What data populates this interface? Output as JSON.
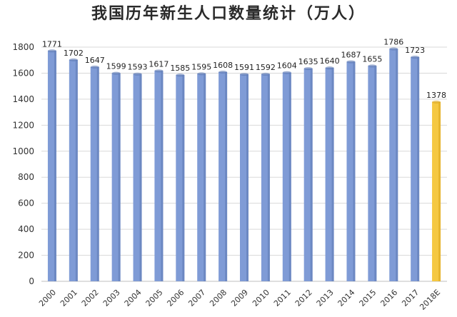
{
  "chart_data": {
    "type": "bar",
    "title": "我国历年新生人口数量统计（万人）",
    "categories": [
      "2000",
      "2001",
      "2002",
      "2003",
      "2004",
      "2005",
      "2006",
      "2007",
      "2008",
      "2009",
      "2010",
      "2011",
      "2012",
      "2013",
      "2014",
      "2015",
      "2016",
      "2017",
      "2018E"
    ],
    "values": [
      1771,
      1702,
      1647,
      1599,
      1593,
      1617,
      1585,
      1595,
      1608,
      1591,
      1592,
      1604,
      1635,
      1640,
      1687,
      1655,
      1786,
      1723,
      1378
    ],
    "ylim": [
      0,
      1800
    ],
    "yticks": [
      0,
      200,
      400,
      600,
      800,
      1000,
      1200,
      1400,
      1600,
      1800
    ],
    "grid": true,
    "legend": "none",
    "colors": {
      "bar": "#7f9bd6",
      "bar_dark": "#5c78b3",
      "highlight": "#f5c842",
      "highlight_dark": "#d9a520"
    },
    "highlight_index": 18
  }
}
